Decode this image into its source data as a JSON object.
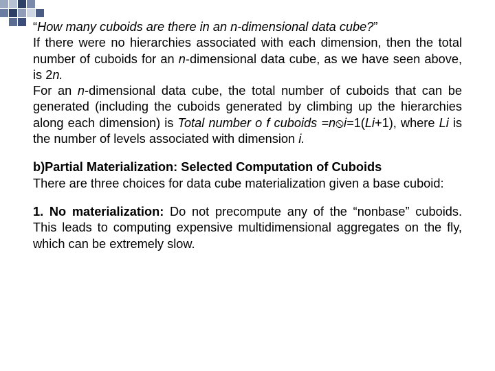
{
  "deco": {
    "cells": [
      "#9aa8c0",
      "#b7c1d4",
      "#2e3f66",
      "#7b8aab",
      "#ffffff",
      "#ffffff",
      "#6a7ca0",
      "#2e3f66",
      "#8f9db8",
      "#cfd6e3",
      "#4a5c84",
      "#ffffff",
      "#ffffff",
      "#5a6c92",
      "#3b4d78",
      "#ffffff",
      "#ffffff",
      "#ffffff"
    ]
  },
  "p1": {
    "q_open": "“",
    "q_text": "How many cuboids are there in an ",
    "q_n": "n-dimensional data cube?",
    "q_close": "”",
    "s1a": "If there were no hierarchies associated with each dimension, then the total number of cuboids for an ",
    "s1b": "n",
    "s1c": "-dimensional data cube, as we have seen above, is 2",
    "s1d": "n.",
    "s2a": "For an ",
    "s2b": "n",
    "s2c": "-dimensional data cube, the total number of cuboids that can be generated (including the cuboids generated by climbing up the hierarchies along each dimension) is ",
    "s2d": "Total number o f cuboids =n",
    "s2e": "⦸",
    "s2f": "i=",
    "s2g": "1(",
    "s2h": "Li",
    "s2i": "+1), where ",
    "s2j": "Li",
    "s2k": " is the number of levels associated with dimension ",
    "s2l": "i."
  },
  "p2": {
    "h": "b)Partial Materialization: Selected Computation of Cuboids",
    "t": "There are three choices for data cube materialization given a base cuboid:"
  },
  "p3": {
    "h": "1. No materialization:",
    "t": " Do not precompute any of the “nonbase” cuboids. This leads to computing expensive multidimensional aggregates on the fly, which can be extremely slow."
  },
  "style": {
    "text_color": "#000000",
    "background": "#ffffff",
    "font_size_pt": 14,
    "line_height": 1.28,
    "font_family": "Arial",
    "align": "justify"
  }
}
